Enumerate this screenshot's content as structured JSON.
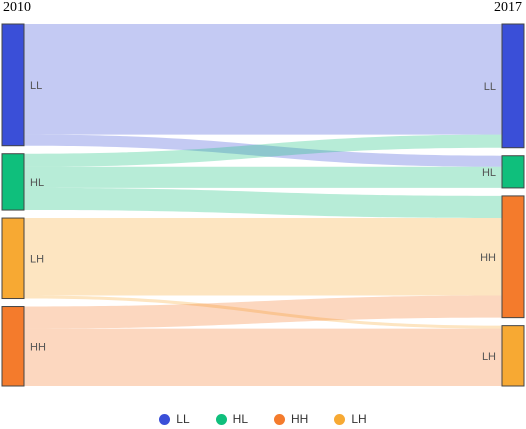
{
  "header": {
    "year_left": "2010",
    "year_right": "2017"
  },
  "nodes": [
    {
      "id": "L_LL",
      "label": "LL",
      "color": "#3a4fd8",
      "side": "left"
    },
    {
      "id": "L_HL",
      "label": "HL",
      "color": "#0fbf7c",
      "side": "left"
    },
    {
      "id": "L_LH",
      "label": "LH",
      "color": "#f7a933",
      "side": "left"
    },
    {
      "id": "L_HH",
      "label": "HH",
      "color": "#f47b2c",
      "side": "left"
    },
    {
      "id": "R_LL",
      "label": "LL",
      "color": "#3a4fd8",
      "side": "right"
    },
    {
      "id": "R_HL",
      "label": "HL",
      "color": "#0fbf7c",
      "side": "right"
    },
    {
      "id": "R_HH",
      "label": "HH",
      "color": "#f47b2c",
      "side": "right"
    },
    {
      "id": "R_LH",
      "label": "LH",
      "color": "#f7a933",
      "side": "right"
    }
  ],
  "links": [
    {
      "source": "L_LL",
      "target": "R_LL",
      "value": 110,
      "color": "#3a4fd8"
    },
    {
      "source": "L_LL",
      "target": "R_HL",
      "value": 11,
      "color": "#3a4fd8"
    },
    {
      "source": "L_HL",
      "target": "R_LL",
      "value": 13,
      "color": "#0fbf7c"
    },
    {
      "source": "L_HL",
      "target": "R_HL",
      "value": 21,
      "color": "#0fbf7c"
    },
    {
      "source": "L_HL",
      "target": "R_HH",
      "value": 22,
      "color": "#0fbf7c"
    },
    {
      "source": "L_LH",
      "target": "R_HH",
      "value": 77,
      "color": "#f7a933"
    },
    {
      "source": "L_LH",
      "target": "R_LH",
      "value": 3,
      "color": "#f7a933"
    },
    {
      "source": "L_HH",
      "target": "R_HH",
      "value": 22,
      "color": "#f47b2c"
    },
    {
      "source": "L_HH",
      "target": "R_LH",
      "value": 57,
      "color": "#f47b2c"
    }
  ],
  "legend": [
    {
      "label": "LL",
      "color": "#3a4fd8"
    },
    {
      "label": "HL",
      "color": "#0fbf7c"
    },
    {
      "label": "HH",
      "color": "#f47b2c"
    },
    {
      "label": "LH",
      "color": "#f7a933"
    }
  ]
}
